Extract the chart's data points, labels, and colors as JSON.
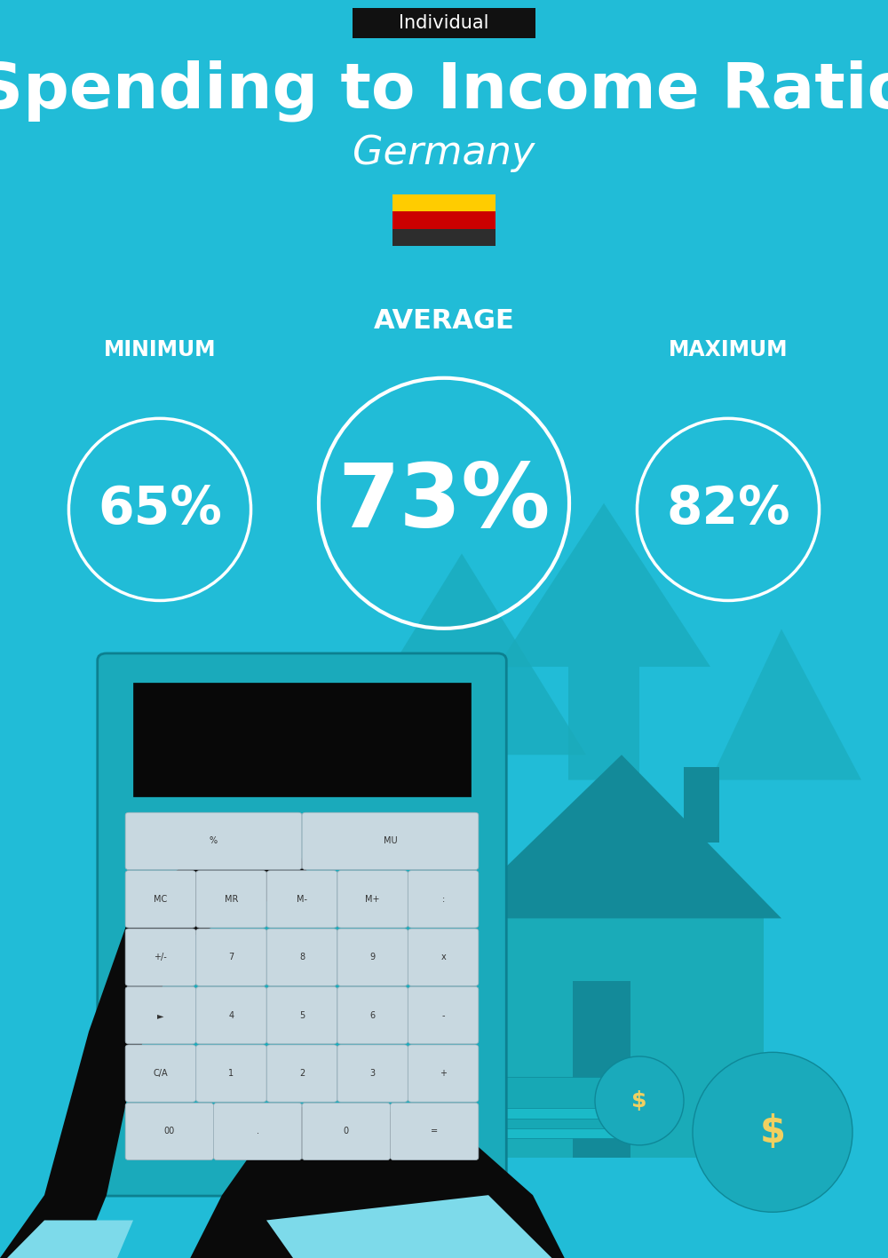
{
  "bg_color": "#21BCD7",
  "title_label": "Individual",
  "title_label_bg": "#111111",
  "title_label_color": "#ffffff",
  "main_title": "Spending to Income Ratio",
  "subtitle": "Germany",
  "min_label": "MINIMUM",
  "avg_label": "AVERAGE",
  "max_label": "MAXIMUM",
  "min_value": "65%",
  "avg_value": "73%",
  "max_value": "82%",
  "flag_colors": [
    "#2d2d2d",
    "#cc0000",
    "#ffcc00"
  ],
  "arrow_color": "#1AAABB",
  "house_color": "#1AABB8",
  "dark_teal": "#138A99",
  "calc_body_color": "#1AAABB",
  "calc_screen_color": "#080808",
  "btn_color": "#C8D8E0",
  "btn_edge": "#A0B0BA",
  "hand_color": "#0A0A0A",
  "cuff_color": "#7DDAEA",
  "bag_color": "#1AAABB",
  "dollar_color": "#F0D060",
  "white": "#ffffff"
}
